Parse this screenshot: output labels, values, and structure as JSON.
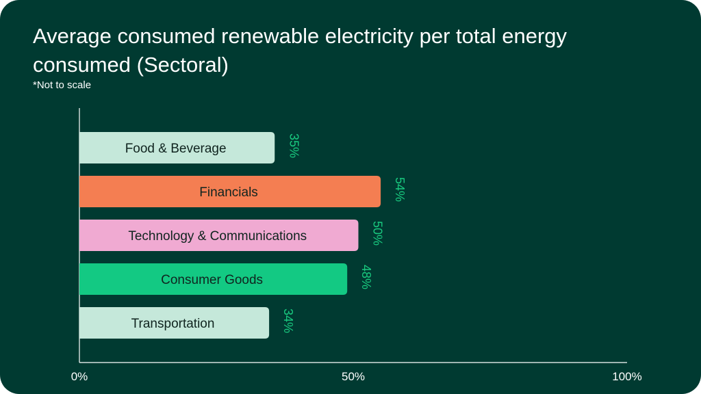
{
  "chart_data": {
    "type": "bar",
    "orientation": "horizontal",
    "title": "Average consumed renewable electricity per total energy consumed (Sectoral)",
    "subtitle": "*Not to scale",
    "categories": [
      "Food & Beverage",
      "Financials",
      "Technology & Communications",
      "Consumer Goods",
      "Transportation"
    ],
    "values": [
      35,
      54,
      50,
      48,
      34
    ],
    "value_labels": [
      "35%",
      "54%",
      "50%",
      "48%",
      "34%"
    ],
    "colors": [
      "#c5e8da",
      "#f47e52",
      "#f0aad2",
      "#13c983",
      "#c5e8da"
    ],
    "xlim": [
      0,
      100
    ],
    "x_ticks": [
      0,
      50,
      100
    ],
    "x_tick_labels": [
      "0%",
      "50%",
      "100%"
    ],
    "grid": false,
    "legend": "none"
  },
  "colors": {
    "background": "#003a31",
    "axis": "#ffffff",
    "value_text": "#19c97f",
    "bar_text": "#10241f"
  }
}
